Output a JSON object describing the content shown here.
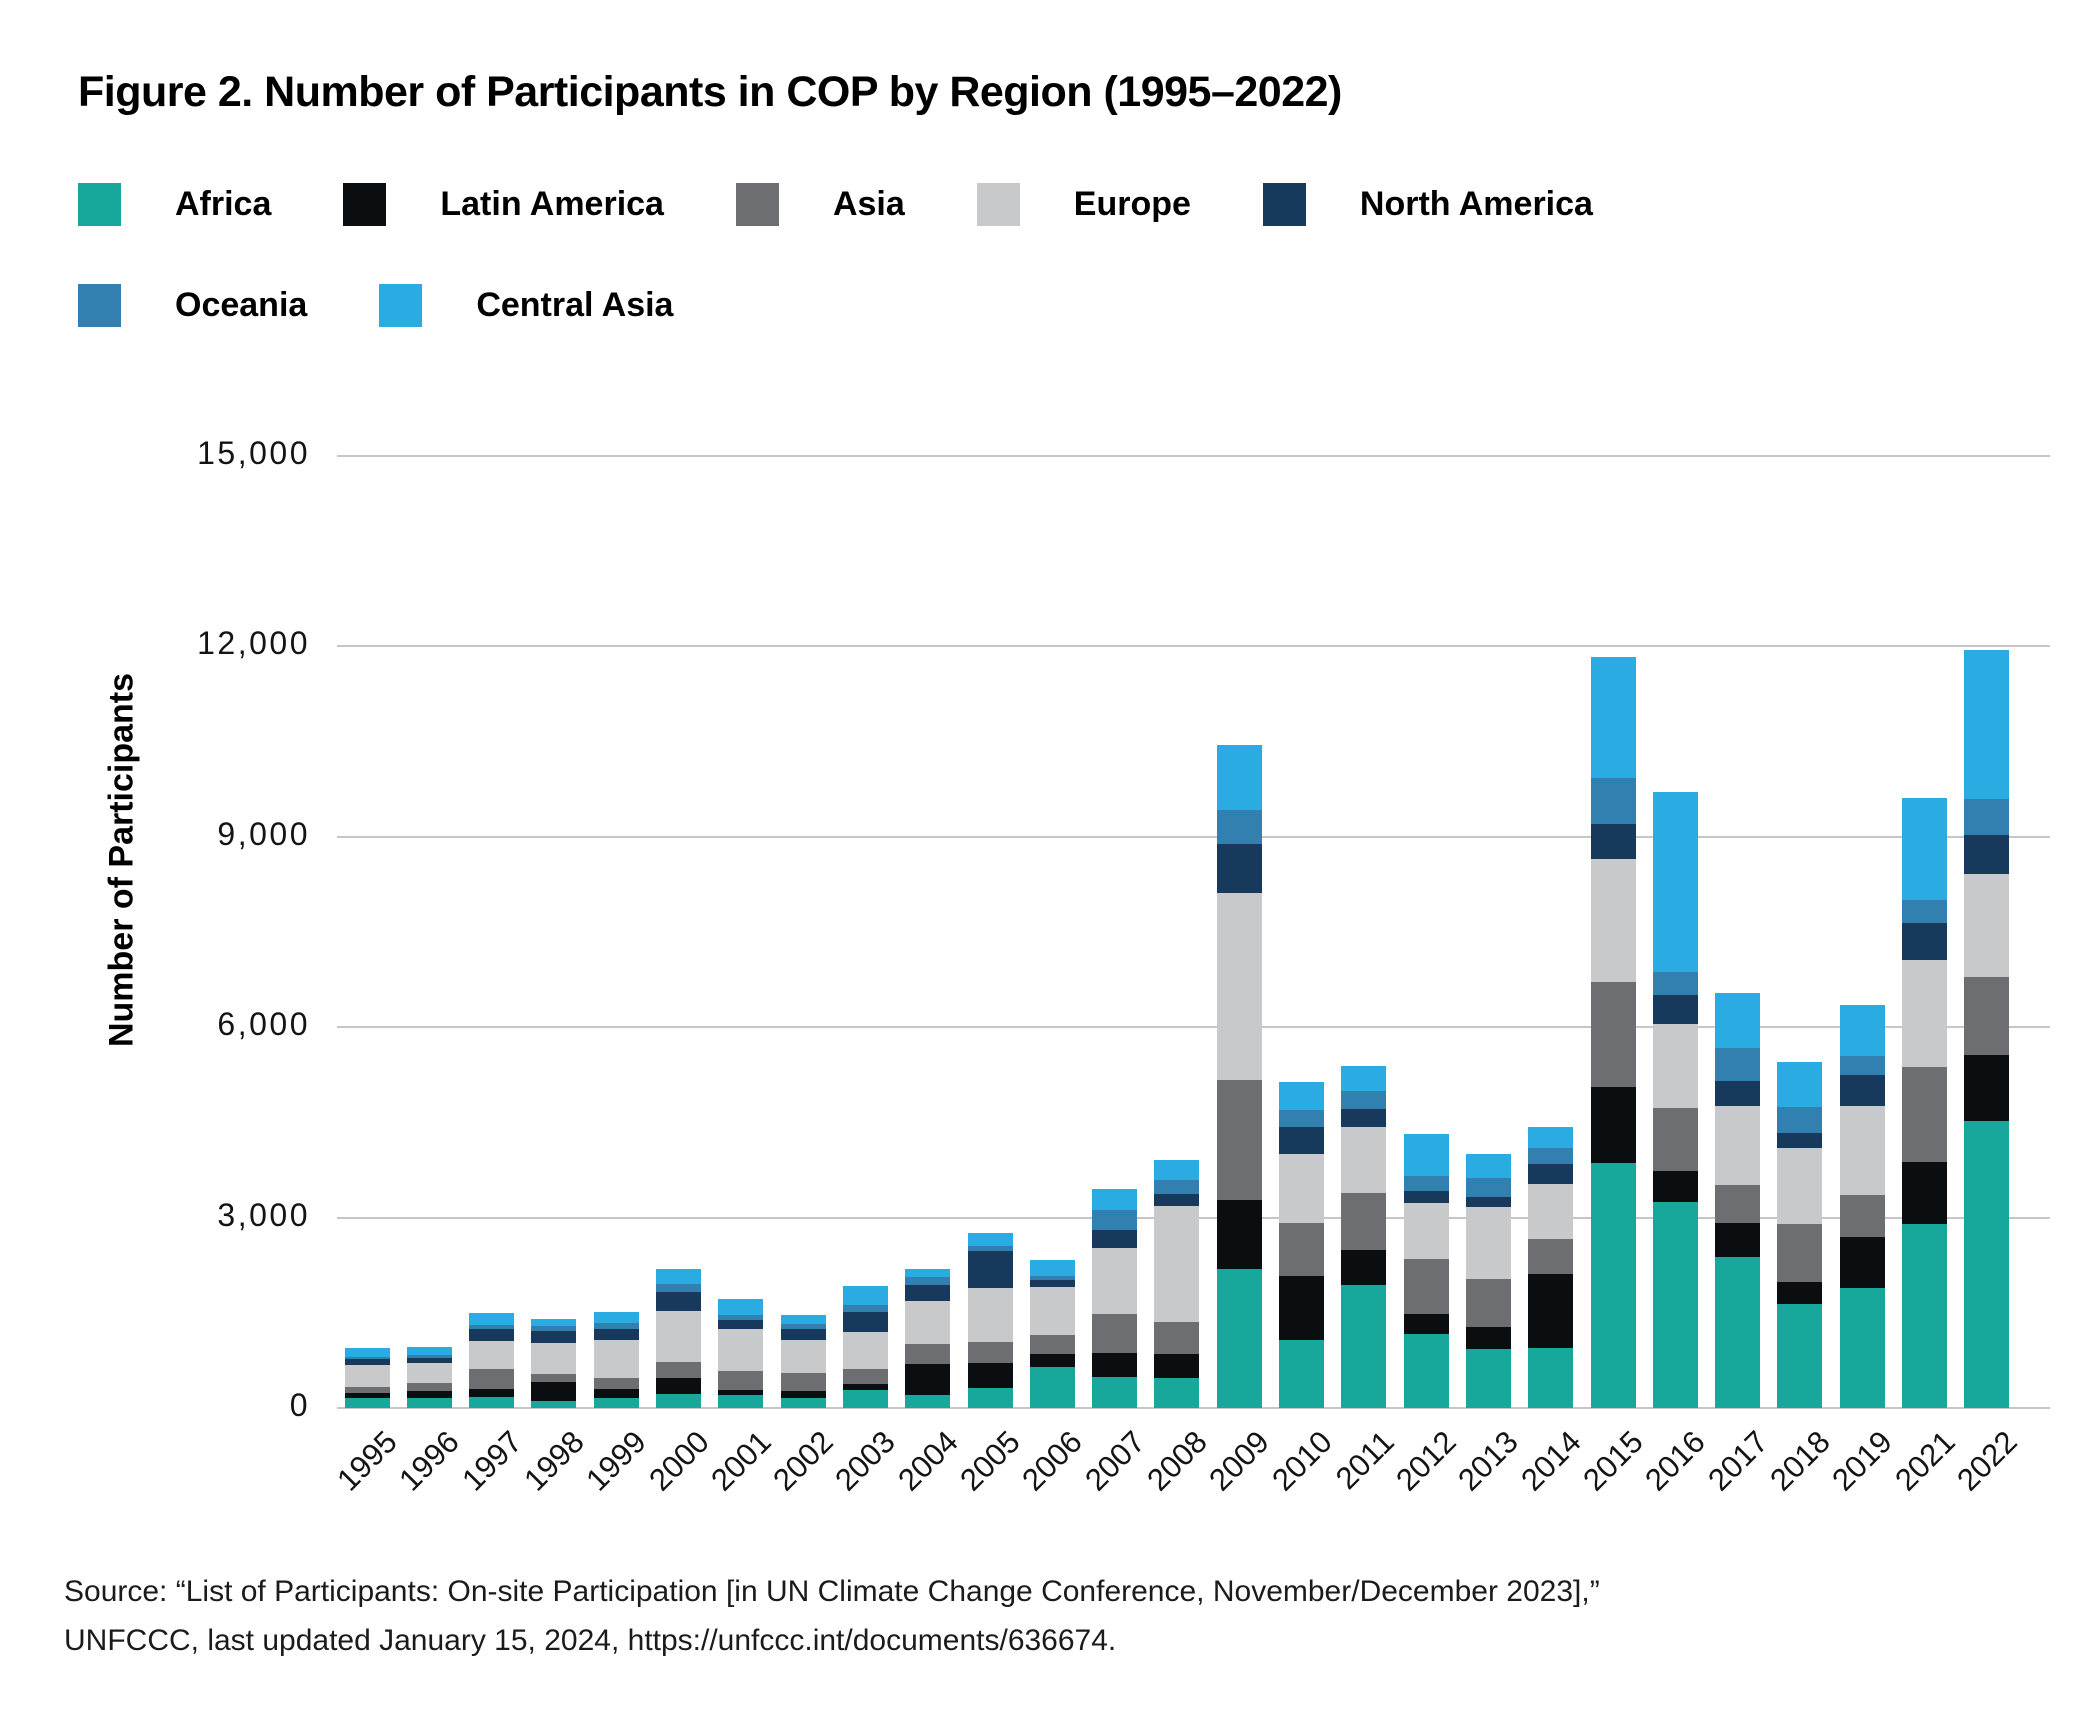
{
  "title": "Figure 2. Number of Participants in COP by Region (1995–2022)",
  "y_axis": {
    "label": "Number of Participants",
    "tick_labels": [
      "15,000",
      "12,000",
      "9,000",
      "6,000",
      "3,000",
      "0"
    ]
  },
  "source": {
    "line1": "Source:  “List of Participants: On-site Participation [in UN Climate Change Conference, November/December 2023],”",
    "line2": "UNFCCC, last updated January 15, 2024, https://unfccc.int/documents/636674."
  },
  "colors": {
    "africa": "#18A79B",
    "latin_america": "#0A0E10",
    "asia": "#6D6E71",
    "europe": "#C8C9CA",
    "north_america": "#17395B",
    "oceania": "#3180AF",
    "central_asia": "#2AABE2",
    "gridline": "#C6C6C6"
  },
  "chart_data": {
    "type": "bar",
    "stacked": true,
    "title": "Figure 2. Number of Participants in COP by Region (1995–2022)",
    "xlabel": "",
    "ylabel": "Number of Participants",
    "ylim": [
      0,
      15000
    ],
    "ytick_step": 3000,
    "grid": true,
    "legend_position": "top",
    "categories": [
      "1995",
      "1996",
      "1997",
      "1998",
      "1999",
      "2000",
      "2001",
      "2002",
      "2003",
      "2004",
      "2005",
      "2006",
      "2007",
      "2008",
      "2009",
      "2010",
      "2011",
      "2012",
      "2013",
      "2014",
      "2015",
      "2016",
      "2017",
      "2018",
      "2019",
      "2021",
      "2022"
    ],
    "series": [
      {
        "name": "Africa",
        "color": "#18A79B",
        "values": [
          155,
          165,
          180,
          105,
          165,
          215,
          200,
          165,
          285,
          200,
          315,
          640,
          485,
          465,
          2190,
          1070,
          1940,
          1160,
          935,
          950,
          3860,
          3250,
          2385,
          1640,
          1890,
          2900,
          4520
        ]
      },
      {
        "name": "Latin America",
        "color": "#0A0E10",
        "values": [
          80,
          105,
          115,
          300,
          130,
          255,
          90,
          95,
          95,
          495,
          400,
          210,
          375,
          380,
          1080,
          1010,
          545,
          325,
          345,
          1160,
          1190,
          490,
          525,
          340,
          805,
          975,
          1045
        ]
      },
      {
        "name": "Asia",
        "color": "#6D6E71",
        "values": [
          100,
          120,
          325,
          130,
          180,
          255,
          290,
          295,
          235,
          315,
          320,
          295,
          625,
          505,
          1905,
          835,
          910,
          860,
          745,
          545,
          1655,
          990,
          610,
          915,
          655,
          1495,
          1220
        ]
      },
      {
        "name": "Europe",
        "color": "#C8C9CA",
        "values": [
          345,
          325,
          430,
          495,
          600,
          810,
          665,
          515,
          590,
          675,
          855,
          755,
          1030,
          1830,
          2935,
          1085,
          1025,
          890,
          1140,
          880,
          1940,
          1315,
          1240,
          1205,
          1410,
          1690,
          1630
        ]
      },
      {
        "name": "North America",
        "color": "#17395B",
        "values": [
          90,
          70,
          200,
          180,
          170,
          285,
          140,
          170,
          315,
          260,
          590,
          120,
          295,
          190,
          780,
          425,
          290,
          190,
          165,
          310,
          560,
          465,
          400,
          235,
          485,
          585,
          615
        ]
      },
      {
        "name": "Oceania",
        "color": "#3180AF",
        "values": [
          40,
          45,
          65,
          80,
          90,
          130,
          80,
          85,
          105,
          115,
          65,
          60,
          310,
          225,
          530,
          275,
          280,
          225,
          295,
          255,
          720,
          365,
          510,
          400,
          295,
          360,
          565
        ]
      },
      {
        "name": "Central Asia",
        "color": "#2AABE2",
        "values": [
          140,
          135,
          180,
          120,
          180,
          245,
          250,
          135,
          295,
          125,
          220,
          250,
          325,
          305,
          1030,
          440,
          395,
          665,
          370,
          325,
          1905,
          2830,
          870,
          720,
          805,
          1610,
          2345
        ]
      }
    ]
  },
  "legend": [
    {
      "label": "Africa",
      "color": "#18A79B"
    },
    {
      "label": "Latin America",
      "color": "#0A0E10"
    },
    {
      "label": "Asia",
      "color": "#6D6E71"
    },
    {
      "label": "Europe",
      "color": "#C8C9CA"
    },
    {
      "label": "North America",
      "color": "#17395B"
    },
    {
      "label": "Oceania",
      "color": "#3180AF"
    },
    {
      "label": "Central Asia",
      "color": "#2AABE2"
    }
  ]
}
